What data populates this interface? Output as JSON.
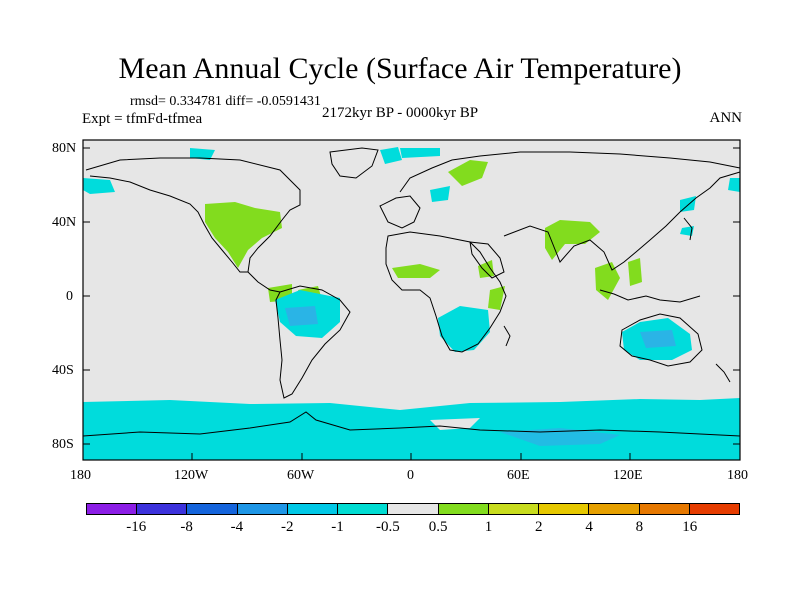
{
  "title": "Mean Annual Cycle (Surface Air Temperature)",
  "stats": "rmsd= 0.334781 diff= -0.0591431",
  "experiment": "Expt = tfmFd-tfmea",
  "period": "2172kyr BP - 0000kyr BP",
  "season": "ANN",
  "map": {
    "lat_ticks": [
      "80N",
      "40N",
      "0",
      "40S",
      "80S"
    ],
    "lon_ticks": [
      "180",
      "120W",
      "60W",
      "0",
      "60E",
      "120E",
      "180"
    ],
    "colors": {
      "background": "#e6e6e6",
      "neg_half_to_one": "#00dcdc",
      "neg_one_to_two": "#2ab4e6",
      "pos_half_to_one": "#82dc1e",
      "coastline": "#000000"
    }
  },
  "colorbar": {
    "colors": [
      "#8c1ee6",
      "#3c32dc",
      "#1464dc",
      "#1e96e6",
      "#00c8e6",
      "#00dcd2",
      "#e6e6e6",
      "#82dc1e",
      "#c8dc1e",
      "#e6c800",
      "#e6a000",
      "#e67800",
      "#e63c00"
    ],
    "labels": [
      "-16",
      "-8",
      "-4",
      "-2",
      "-1",
      "-0.5",
      "0.5",
      "1",
      "2",
      "4",
      "8",
      "16"
    ]
  }
}
